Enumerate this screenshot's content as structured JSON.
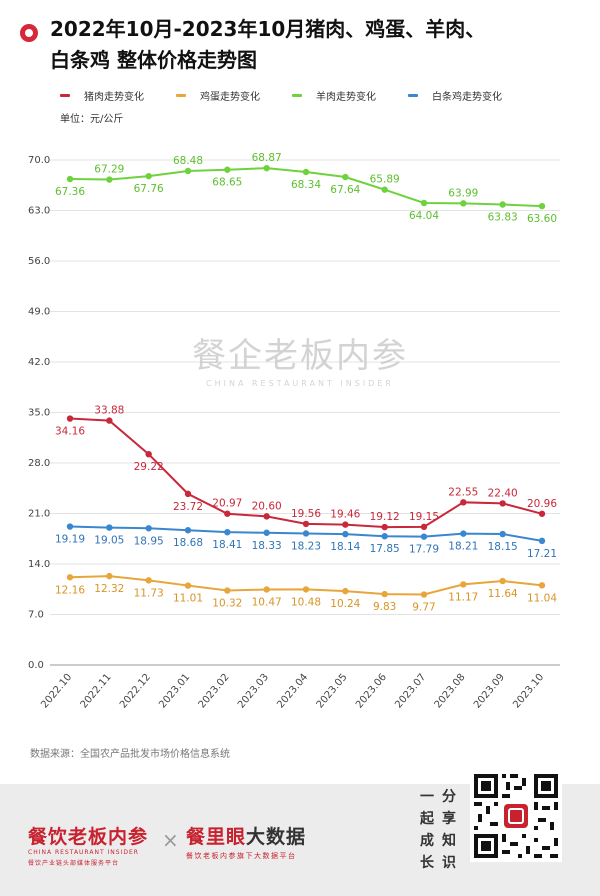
{
  "header": {
    "title_line1": "2022年10月-2023年10月猪肉、鸡蛋、羊肉、",
    "title_line2": "白条鸡 整体价格走势图"
  },
  "legend": [
    {
      "label": "猪肉走势变化",
      "color": "#c8283a"
    },
    {
      "label": "鸡蛋走势变化",
      "color": "#e8a53a"
    },
    {
      "label": "羊肉走势变化",
      "color": "#6ed23c"
    },
    {
      "label": "白条鸡走势变化",
      "color": "#3a86d0"
    }
  ],
  "unit_label": "单位：元/公斤",
  "watermark": {
    "cn": "餐企老板内参",
    "en": "CHINA RESTAURANT INSIDER"
  },
  "source": "数据来源：全国农产品批发市场价格信息系统",
  "footer": {
    "brand1_cn": "餐饮老板内参",
    "brand1_en": "CHINA RESTAURANT INSIDER",
    "brand1_sub": "餐饮产业链头部媒体服务平台",
    "cross": "×",
    "brand2_red": "餐里眼",
    "brand2_dark": "大数据",
    "brand2_sub": "餐饮老板内参旗下大数据平台",
    "follow_col1": [
      "一",
      "起",
      "成",
      "长"
    ],
    "follow_col2": [
      "分",
      "享",
      "知",
      "识"
    ]
  },
  "chart_data": {
    "type": "line",
    "title": "2022年10月-2023年10月猪肉、鸡蛋、羊肉、白条鸡 整体价格走势图",
    "ylabel": "单位：元/公斤",
    "ylim": [
      0,
      70
    ],
    "yticks": [
      "0.0",
      "7.0",
      "14.0",
      "21.0",
      "28.0",
      "35.0",
      "42.0",
      "49.0",
      "56.0",
      "63.0",
      "70.0"
    ],
    "grid": true,
    "legend_position": "top-left",
    "categories": [
      "2022.10",
      "2022.11",
      "2022.12",
      "2023.01",
      "2023.02",
      "2023.03",
      "2023.04",
      "2023.05",
      "2023.06",
      "2023.07",
      "2023.08",
      "2023.09",
      "2023.10"
    ],
    "series": [
      {
        "name": "羊肉走势变化",
        "color": "#6ed23c",
        "label_color": "#5cbf2e",
        "values": [
          67.36,
          67.29,
          67.76,
          68.48,
          68.65,
          68.87,
          68.34,
          67.64,
          65.89,
          64.04,
          63.99,
          63.83,
          63.6
        ],
        "labels": [
          "67.36",
          "67.29",
          "67.76",
          "68.48",
          "68.65",
          "68.87",
          "68.34",
          "67.64",
          "65.89",
          "64.04",
          "63.99",
          "63.83",
          "63.60"
        ],
        "label_pos": [
          "below",
          "above",
          "below",
          "above",
          "below",
          "above",
          "below",
          "below",
          "above",
          "below",
          "above",
          "below",
          "below"
        ]
      },
      {
        "name": "猪肉走势变化",
        "color": "#c8283a",
        "label_color": "#c8283a",
        "values": [
          34.16,
          33.88,
          29.22,
          23.72,
          20.97,
          20.6,
          19.56,
          19.46,
          19.12,
          19.15,
          22.55,
          22.4,
          20.96
        ],
        "labels": [
          "34.16",
          "33.88",
          "29.22",
          "23.72",
          "20.97",
          "20.60",
          "19.56",
          "19.46",
          "19.12",
          "19.15",
          "22.55",
          "22.40",
          "20.96"
        ],
        "label_pos": [
          "below",
          "above",
          "below",
          "below",
          "above",
          "above",
          "above",
          "above",
          "above",
          "above",
          "above",
          "above",
          "above"
        ]
      },
      {
        "name": "白条鸡走势变化",
        "color": "#3a86d0",
        "label_color": "#2f74b8",
        "values": [
          19.19,
          19.05,
          18.95,
          18.68,
          18.41,
          18.33,
          18.23,
          18.14,
          17.85,
          17.79,
          18.21,
          18.15,
          17.21
        ],
        "labels": [
          "19.19",
          "19.05",
          "18.95",
          "18.68",
          "18.41",
          "18.33",
          "18.23",
          "18.14",
          "17.85",
          "17.79",
          "18.21",
          "18.15",
          "17.21"
        ],
        "label_pos": [
          "below",
          "below",
          "below",
          "below",
          "below",
          "below",
          "below",
          "below",
          "below",
          "below",
          "below",
          "below",
          "below"
        ]
      },
      {
        "name": "鸡蛋走势变化",
        "color": "#e8a53a",
        "label_color": "#d99426",
        "values": [
          12.16,
          12.32,
          11.73,
          11.01,
          10.32,
          10.47,
          10.48,
          10.24,
          9.83,
          9.77,
          11.17,
          11.64,
          11.04
        ],
        "labels": [
          "12.16",
          "12.32",
          "11.73",
          "11.01",
          "10.32",
          "10.47",
          "10.48",
          "10.24",
          "9.83",
          "9.77",
          "11.17",
          "11.64",
          "11.04"
        ],
        "label_pos": [
          "below",
          "below",
          "below",
          "below",
          "below",
          "below",
          "below",
          "below",
          "below",
          "below",
          "below",
          "below",
          "below"
        ]
      }
    ]
  }
}
